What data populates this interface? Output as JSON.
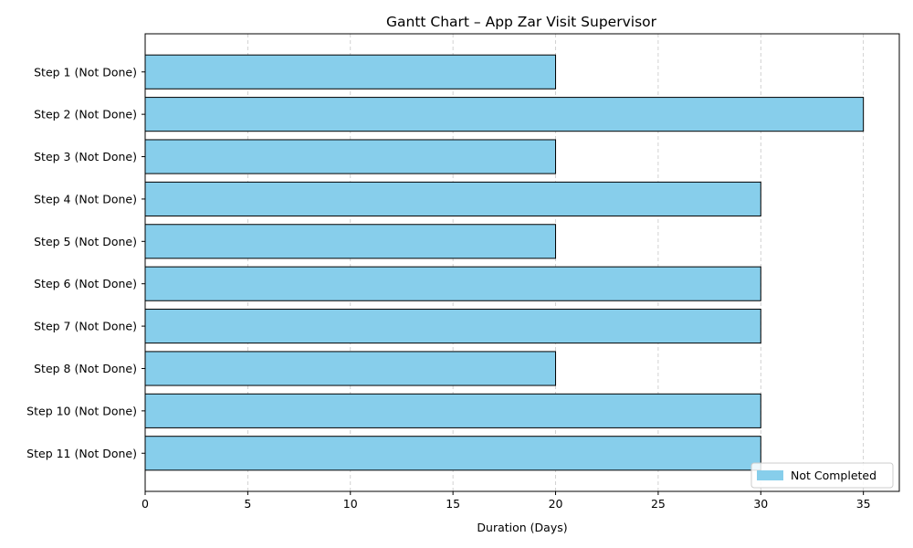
{
  "chart_data": {
    "type": "bar",
    "orientation": "horizontal",
    "title": "Gantt Chart – App Zar Visit Supervisor",
    "xlabel": "Duration (Days)",
    "ylabel": "",
    "xlim": [
      0,
      36.75
    ],
    "xticks": [
      0,
      5,
      10,
      15,
      20,
      25,
      30,
      35
    ],
    "grid": "x-dashed",
    "categories": [
      "Step 1 (Not Done)",
      "Step 2 (Not Done)",
      "Step 3 (Not Done)",
      "Step 4 (Not Done)",
      "Step 5 (Not Done)",
      "Step 6 (Not Done)",
      "Step 7 (Not Done)",
      "Step 8 (Not Done)",
      "Step 10 (Not Done)",
      "Step 11 (Not Done)"
    ],
    "values": [
      20,
      35,
      20,
      30,
      20,
      30,
      30,
      20,
      30,
      30
    ],
    "bar_color": "#87ceeb",
    "edge_color": "#000000",
    "legend": {
      "placement": "lower-right",
      "entries": [
        {
          "label": "Not Completed",
          "color": "#87ceeb"
        }
      ]
    }
  }
}
